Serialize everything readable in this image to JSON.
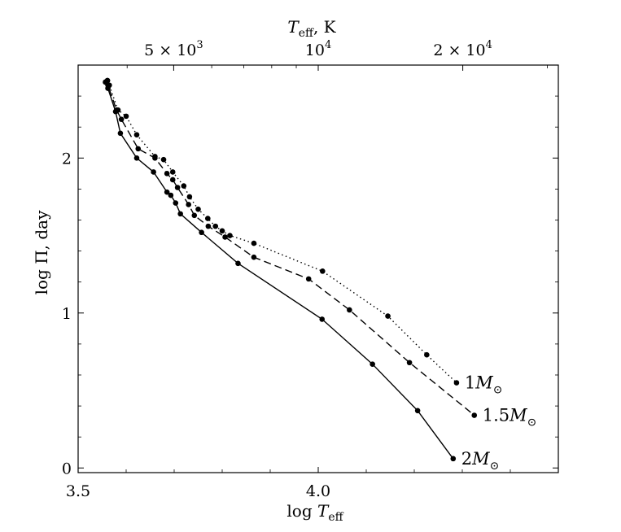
{
  "chart_data": {
    "type": "line",
    "xlabel": {
      "text": "log ",
      "var": "T",
      "sub": "eff"
    },
    "ylabel": "log Π, day",
    "top_axis_label": {
      "var": "T",
      "sub": "eff",
      "suffix": ",  K"
    },
    "xlim": [
      3.5,
      4.5
    ],
    "ylim": [
      -0.03,
      2.6
    ],
    "x_ticks": [
      3.5,
      4.0
    ],
    "x_tick_labels": [
      "3.5",
      "4.0"
    ],
    "y_ticks": [
      0,
      1,
      2
    ],
    "y_tick_labels": [
      "0",
      "1",
      "2"
    ],
    "top_ticks": [
      {
        "value": 3.69897,
        "label_main": "5 × 10",
        "label_sup": "3"
      },
      {
        "value": 4.0,
        "label_main": "10",
        "label_sup": "4"
      },
      {
        "value": 4.30103,
        "label_main": "2 × 10",
        "label_sup": "4"
      }
    ],
    "grid": false,
    "series": [
      {
        "name": "1M⊙",
        "line_style": "solid",
        "points": [
          [
            3.557,
            2.49
          ],
          [
            3.561,
            2.5
          ],
          [
            3.562,
            2.45
          ],
          [
            3.578,
            2.3
          ],
          [
            3.588,
            2.16
          ],
          [
            3.622,
            2.0
          ],
          [
            3.657,
            1.91
          ],
          [
            3.685,
            1.78
          ],
          [
            3.693,
            1.76
          ],
          [
            3.703,
            1.71
          ],
          [
            3.713,
            1.64
          ],
          [
            3.757,
            1.52
          ],
          [
            3.833,
            1.32
          ],
          [
            4.008,
            0.96
          ],
          [
            4.113,
            0.67
          ],
          [
            4.207,
            0.37
          ],
          [
            4.281,
            0.06
          ]
        ]
      },
      {
        "name": "1.5M⊙",
        "line_style": "dashed",
        "points": [
          [
            3.557,
            2.49
          ],
          [
            3.561,
            2.5
          ],
          [
            3.562,
            2.47
          ],
          [
            3.58,
            2.31
          ],
          [
            3.59,
            2.25
          ],
          [
            3.625,
            2.06
          ],
          [
            3.66,
            2.0
          ],
          [
            3.685,
            1.9
          ],
          [
            3.697,
            1.86
          ],
          [
            3.707,
            1.81
          ],
          [
            3.73,
            1.7
          ],
          [
            3.742,
            1.63
          ],
          [
            3.771,
            1.56
          ],
          [
            3.806,
            1.49
          ],
          [
            3.866,
            1.36
          ],
          [
            3.98,
            1.22
          ],
          [
            4.065,
            1.02
          ],
          [
            4.19,
            0.68
          ],
          [
            4.325,
            0.34
          ]
        ]
      },
      {
        "name": "2M⊙",
        "line_style": "dotted",
        "points": [
          [
            3.557,
            2.49
          ],
          [
            3.561,
            2.5
          ],
          [
            3.565,
            2.47
          ],
          [
            3.583,
            2.31
          ],
          [
            3.6,
            2.27
          ],
          [
            3.622,
            2.15
          ],
          [
            3.66,
            2.01
          ],
          [
            3.678,
            1.99
          ],
          [
            3.697,
            1.91
          ],
          [
            3.72,
            1.82
          ],
          [
            3.732,
            1.75
          ],
          [
            3.75,
            1.67
          ],
          [
            3.77,
            1.61
          ],
          [
            3.786,
            1.56
          ],
          [
            3.8,
            1.53
          ],
          [
            3.816,
            1.5
          ],
          [
            3.866,
            1.45
          ],
          [
            4.009,
            1.27
          ],
          [
            4.145,
            0.98
          ],
          [
            4.226,
            0.73
          ],
          [
            4.288,
            0.55
          ]
        ]
      }
    ],
    "series_labels": [
      {
        "main": "2M",
        "sub": "⊙"
      },
      {
        "main": "1.5M",
        "sub": "⊙"
      },
      {
        "main": "1M",
        "sub": "⊙"
      }
    ]
  }
}
